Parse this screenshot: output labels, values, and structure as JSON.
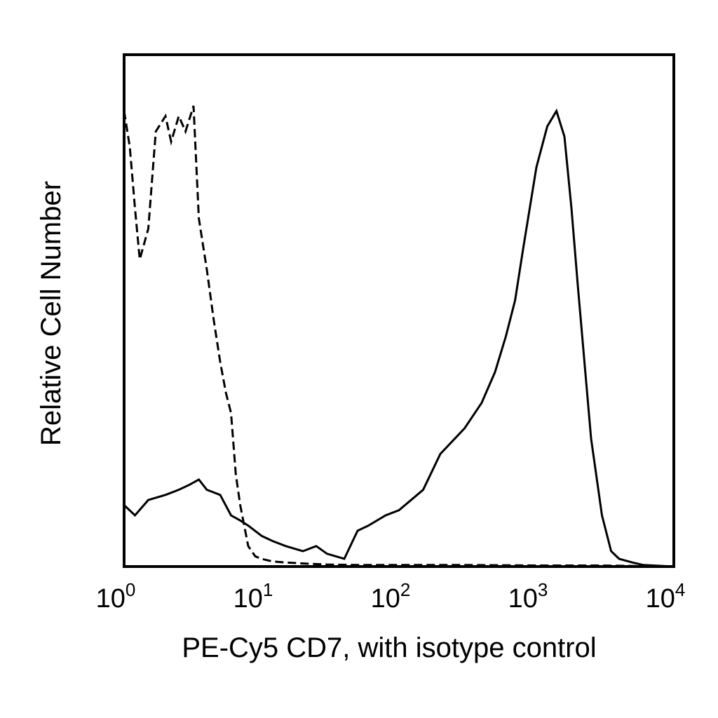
{
  "chart_data": {
    "type": "line",
    "title": "",
    "xlabel": "PE-Cy5 CD7, with isotype control",
    "ylabel": "Relative Cell Number",
    "x_scale": "log",
    "xlim": [
      1,
      10000
    ],
    "ylim": [
      0,
      100
    ],
    "grid": false,
    "x_ticks": [
      {
        "base": "10",
        "exp": "0",
        "value": 1
      },
      {
        "base": "10",
        "exp": "1",
        "value": 10
      },
      {
        "base": "10",
        "exp": "2",
        "value": 100
      },
      {
        "base": "10",
        "exp": "3",
        "value": 1000
      },
      {
        "base": "10",
        "exp": "4",
        "value": 10000
      }
    ],
    "series": [
      {
        "style": "dashed",
        "color": "#000000",
        "x": [
          1.0,
          1.1,
          1.2,
          1.3,
          1.5,
          1.7,
          2.0,
          2.2,
          2.5,
          2.8,
          3.2,
          3.5,
          4.0,
          4.5,
          5.0,
          5.5,
          6.0,
          6.5,
          7.0,
          8.0,
          9.0,
          10,
          12,
          15,
          20,
          30,
          50,
          100,
          300,
          1000,
          3000,
          10000
        ],
        "y": [
          89,
          82,
          70,
          60,
          66,
          85,
          88,
          83,
          88,
          85,
          90,
          68,
          58,
          48,
          40,
          34,
          30,
          18,
          12,
          4,
          2,
          1.5,
          1,
          0.8,
          0.6,
          0.4,
          0.3,
          0.3,
          0.3,
          0.2,
          0.2,
          0
        ]
      },
      {
        "style": "solid",
        "color": "#000000",
        "x": [
          1.0,
          1.2,
          1.5,
          2.0,
          2.5,
          3.0,
          3.5,
          4.0,
          5.0,
          6.0,
          7.0,
          8.0,
          10,
          12,
          15,
          20,
          25,
          30,
          40,
          50,
          60,
          80,
          100,
          150,
          200,
          300,
          400,
          500,
          600,
          700,
          800,
          1000,
          1200,
          1400,
          1600,
          1800,
          2000,
          2500,
          3000,
          3500,
          4000,
          5000,
          6000,
          10000
        ],
        "y": [
          12,
          10,
          13,
          14,
          15,
          16,
          17,
          15,
          14,
          10,
          9,
          8,
          6,
          5,
          4,
          3,
          4,
          2.5,
          1.5,
          7,
          8,
          10,
          11,
          15,
          22,
          27,
          32,
          38,
          45,
          52,
          62,
          78,
          86,
          89,
          84,
          70,
          55,
          25,
          10,
          3,
          1.5,
          0.8,
          0.3,
          0
        ]
      }
    ]
  }
}
